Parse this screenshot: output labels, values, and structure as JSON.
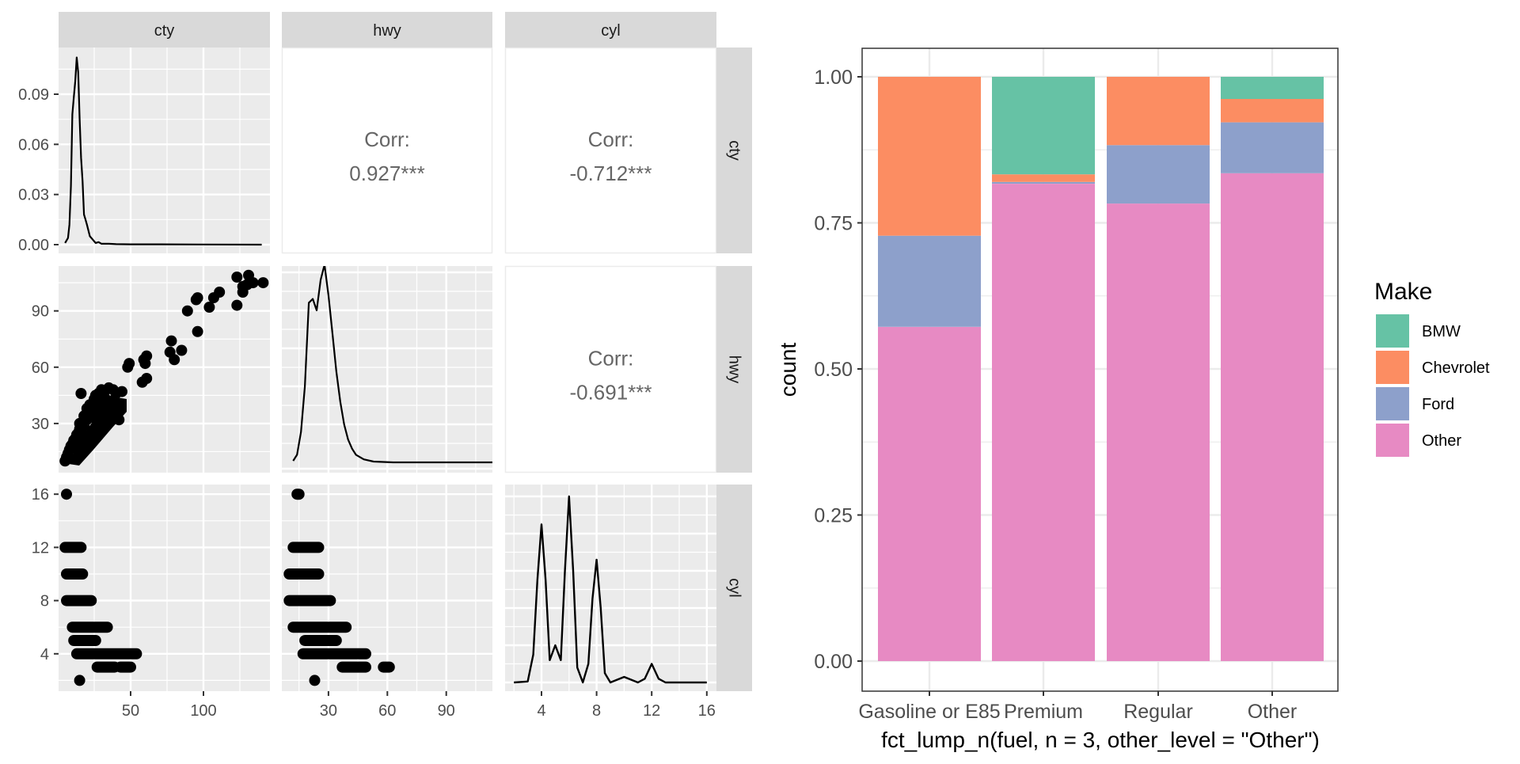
{
  "chart_data": [
    {
      "type": "scatter",
      "title": "",
      "subtitle": "ggpairs matrix of cty, hwy, cyl",
      "variables": [
        "cty",
        "hwy",
        "cyl"
      ],
      "column_strips": [
        "cty",
        "hwy",
        "cyl"
      ],
      "row_strips": [
        "cty",
        "hwy",
        "cyl"
      ],
      "axes": {
        "cty": {
          "ticks": [
            50,
            100
          ],
          "range": [
            0,
            145
          ]
        },
        "hwy": {
          "ticks": [
            30,
            60,
            90
          ],
          "range": [
            0,
            112
          ]
        },
        "cyl": {
          "ticks": [
            4,
            8,
            12,
            16
          ],
          "range": [
            1.3,
            17
          ]
        },
        "density_cty_y": {
          "ticks": [
            "0.00",
            "0.03",
            "0.06",
            "0.09"
          ],
          "tick_values": [
            0,
            0.03,
            0.06,
            0.09
          ],
          "range": [
            -0.003,
            0.12
          ]
        },
        "hwy_y": {
          "ticks": [
            "30",
            "60",
            "90"
          ],
          "tick_values": [
            30,
            60,
            90
          ],
          "range": [
            9,
            114
          ]
        },
        "cyl_y": {
          "ticks": [
            "4",
            "8",
            "12",
            "16"
          ],
          "tick_values": [
            4,
            8,
            12,
            16
          ],
          "range": [
            1.3,
            16.7
          ]
        }
      },
      "correlations": [
        {
          "row": "cty",
          "col": "hwy",
          "label": "Corr:",
          "value": "0.927***"
        },
        {
          "row": "cty",
          "col": "cyl",
          "label": "Corr:",
          "value": "-0.712***"
        },
        {
          "row": "hwy",
          "col": "cyl",
          "label": "Corr:",
          "value": "-0.691***"
        }
      ],
      "density_cty": {
        "x": [
          5,
          7,
          8,
          9,
          10,
          11,
          12,
          13,
          14,
          15,
          16,
          17,
          18,
          19,
          20,
          22,
          24,
          26,
          28,
          30,
          35,
          40,
          50,
          70,
          100,
          140
        ],
        "y": [
          0.001,
          0.004,
          0.012,
          0.035,
          0.078,
          0.088,
          0.098,
          0.112,
          0.103,
          0.075,
          0.052,
          0.038,
          0.018,
          0.015,
          0.012,
          0.005,
          0.003,
          0.001,
          0.0015,
          0.0005,
          0.0005,
          0.0003,
          0.0002,
          0.0002,
          0.0001,
          0.0
        ]
      },
      "density_hwy": {
        "x": [
          4,
          6,
          8,
          10,
          12,
          14,
          16,
          18,
          20,
          22,
          24,
          26,
          28,
          30,
          32,
          34,
          36,
          40,
          45,
          55,
          70,
          90,
          110
        ],
        "y": [
          0.002,
          0.01,
          0.04,
          0.1,
          0.21,
          0.215,
          0.2,
          0.24,
          0.26,
          0.22,
          0.17,
          0.12,
          0.08,
          0.05,
          0.03,
          0.018,
          0.01,
          0.004,
          0.001,
          0.0,
          0.0,
          0.0,
          0.0
        ]
      },
      "density_cyl": {
        "x": [
          2,
          3,
          3.4,
          3.7,
          4,
          4.3,
          4.6,
          5,
          5.4,
          5.7,
          6,
          6.3,
          6.6,
          7,
          7.4,
          7.7,
          8,
          8.3,
          8.6,
          9,
          10,
          11,
          11.5,
          12,
          12.5,
          13,
          16
        ],
        "y": [
          0.0,
          0.005,
          0.15,
          0.55,
          0.85,
          0.55,
          0.12,
          0.2,
          0.12,
          0.6,
          1.0,
          0.6,
          0.08,
          0.0,
          0.1,
          0.45,
          0.66,
          0.4,
          0.05,
          0.0,
          0.03,
          0.0,
          0.02,
          0.1,
          0.02,
          0.0,
          0.0
        ]
      },
      "scatter_cty_hwy": [
        [
          5,
          10
        ],
        [
          6,
          12
        ],
        [
          7,
          14
        ],
        [
          8,
          16
        ],
        [
          9,
          18
        ],
        [
          10,
          19
        ],
        [
          11,
          21
        ],
        [
          12,
          22
        ],
        [
          13,
          24
        ],
        [
          14,
          25
        ],
        [
          15,
          27
        ],
        [
          16,
          28
        ],
        [
          17,
          30
        ],
        [
          18,
          31
        ],
        [
          19,
          33
        ],
        [
          20,
          35
        ],
        [
          21,
          36
        ],
        [
          22,
          38
        ],
        [
          23,
          40
        ],
        [
          24,
          41
        ],
        [
          25,
          43
        ],
        [
          26,
          45
        ],
        [
          28,
          46
        ],
        [
          30,
          48
        ],
        [
          32,
          47
        ],
        [
          35,
          49
        ],
        [
          10,
          17
        ],
        [
          12,
          20
        ],
        [
          14,
          23
        ],
        [
          16,
          26
        ],
        [
          18,
          29
        ],
        [
          20,
          32
        ],
        [
          22,
          34
        ],
        [
          24,
          37
        ],
        [
          26,
          39
        ],
        [
          28,
          41
        ],
        [
          30,
          43
        ],
        [
          32,
          44
        ],
        [
          15,
          30
        ],
        [
          18,
          34
        ],
        [
          20,
          38
        ],
        [
          22,
          40
        ],
        [
          25,
          33
        ],
        [
          28,
          33
        ],
        [
          30,
          35
        ],
        [
          33,
          38
        ],
        [
          36,
          42
        ],
        [
          16,
          46
        ],
        [
          38,
          48
        ],
        [
          40,
          46
        ],
        [
          44,
          47
        ],
        [
          42,
          32
        ],
        [
          48,
          60
        ],
        [
          49,
          62
        ],
        [
          58,
          52
        ],
        [
          61,
          54
        ],
        [
          59,
          64
        ],
        [
          61,
          66
        ],
        [
          60,
          62
        ],
        [
          77,
          68
        ],
        [
          78,
          74
        ],
        [
          80,
          64
        ],
        [
          85,
          69
        ],
        [
          89,
          90
        ],
        [
          95,
          96
        ],
        [
          96,
          97
        ],
        [
          96,
          79
        ],
        [
          104,
          92
        ],
        [
          107,
          97
        ],
        [
          111,
          100
        ],
        [
          123,
          93
        ],
        [
          123,
          108
        ],
        [
          131,
          109
        ],
        [
          127,
          100
        ],
        [
          127,
          103
        ],
        [
          130,
          104
        ],
        [
          134,
          105
        ],
        [
          141,
          105
        ]
      ],
      "scatter_cty_cyl": [
        {
          "cyl": 16,
          "cty_from": 6,
          "cty_to": 6
        },
        {
          "cyl": 12,
          "cty_from": 5,
          "cty_to": 16
        },
        {
          "cyl": 10,
          "cty_from": 6,
          "cty_to": 17
        },
        {
          "cyl": 8,
          "cty_from": 6,
          "cty_to": 23
        },
        {
          "cyl": 6,
          "cty_from": 10,
          "cty_to": 34
        },
        {
          "cyl": 5,
          "cty_from": 11,
          "cty_to": 26
        },
        {
          "cyl": 4,
          "cty_from": 13,
          "cty_to": 54
        },
        {
          "cyl": 3,
          "cty_from": 27,
          "cty_to": 39
        },
        {
          "cyl": 3,
          "cty_from": 43,
          "cty_to": 50
        },
        {
          "cyl": 2,
          "cty_from": 15,
          "cty_to": 15
        }
      ],
      "scatter_hwy_cyl": [
        {
          "cyl": 16,
          "hwy_from": 14,
          "hwy_to": 15
        },
        {
          "cyl": 12,
          "hwy_from": 12,
          "hwy_to": 25
        },
        {
          "cyl": 10,
          "hwy_from": 10,
          "hwy_to": 25
        },
        {
          "cyl": 8,
          "hwy_from": 10,
          "hwy_to": 31
        },
        {
          "cyl": 6,
          "hwy_from": 12,
          "hwy_to": 39
        },
        {
          "cyl": 5,
          "hwy_from": 18,
          "hwy_to": 34
        },
        {
          "cyl": 4,
          "hwy_from": 17,
          "hwy_to": 49
        },
        {
          "cyl": 3,
          "hwy_from": 37,
          "hwy_to": 49
        },
        {
          "cyl": 3,
          "hwy_from": 58,
          "hwy_to": 61
        },
        {
          "cyl": 2,
          "hwy_from": 23,
          "hwy_to": 23
        }
      ]
    },
    {
      "type": "bar",
      "stacked": true,
      "position": "fill",
      "title": "",
      "xlabel": "fct_lump_n(fuel, n = 3, other_level = \"Other\")",
      "ylabel": "count",
      "ylim": [
        0,
        1
      ],
      "yticks": [
        "0.00",
        "0.25",
        "0.50",
        "0.75",
        "1.00"
      ],
      "ytick_values": [
        0,
        0.25,
        0.5,
        0.75,
        1.0
      ],
      "categories": [
        "Gasoline or E85",
        "Premium",
        "Regular",
        "Other"
      ],
      "legend": {
        "title": "Make",
        "placement": "right"
      },
      "series": [
        {
          "name": "BMW",
          "color": "#66c2a5",
          "values": [
            0.0,
            0.167,
            0.0,
            0.038
          ]
        },
        {
          "name": "Chevrolet",
          "color": "#fc8d62",
          "values": [
            0.272,
            0.013,
            0.117,
            0.04
          ]
        },
        {
          "name": "Ford",
          "color": "#8da0cb",
          "values": [
            0.156,
            0.003,
            0.1,
            0.087
          ]
        },
        {
          "name": "Other",
          "color": "#e78ac3",
          "values": [
            0.572,
            0.817,
            0.783,
            0.835
          ]
        }
      ]
    }
  ]
}
